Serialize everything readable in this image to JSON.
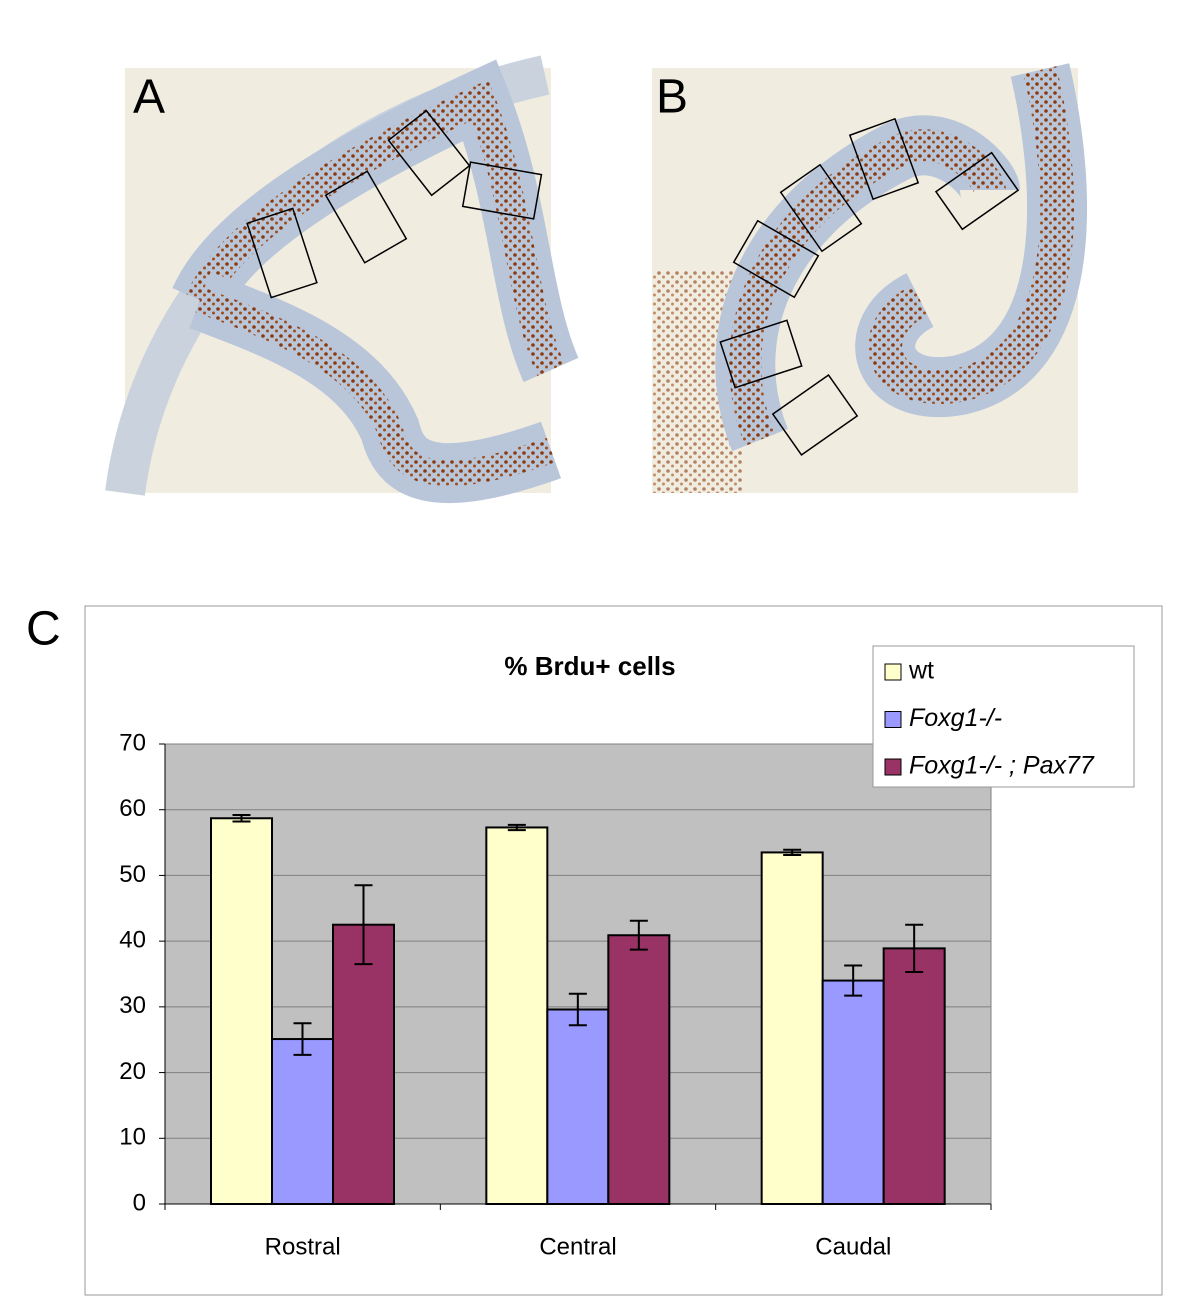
{
  "panel_labels": [
    "A",
    "B",
    "C"
  ],
  "chart_data": {
    "type": "bar",
    "title": "% Brdu+ cells",
    "categories": [
      "Rostral",
      "Central",
      "Caudal"
    ],
    "series": [
      {
        "name": "wt",
        "color": "#ffffcc",
        "values": [
          58.7,
          57.3,
          53.5
        ],
        "error": [
          0.5,
          0.4,
          0.4
        ]
      },
      {
        "name": "Foxg1-/-",
        "color": "#9999ff",
        "values": [
          25.1,
          29.6,
          34.0
        ],
        "error": [
          2.4,
          2.4,
          2.3
        ]
      },
      {
        "name": "Foxg1-/- ; Pax77",
        "color": "#993366",
        "values": [
          42.5,
          40.9,
          38.9
        ],
        "error": [
          6.0,
          2.2,
          3.6
        ]
      }
    ],
    "ylim": [
      0,
      70
    ],
    "yticks": [
      0,
      10,
      20,
      30,
      40,
      50,
      60,
      70
    ],
    "grid": true,
    "legend": "top-right"
  }
}
